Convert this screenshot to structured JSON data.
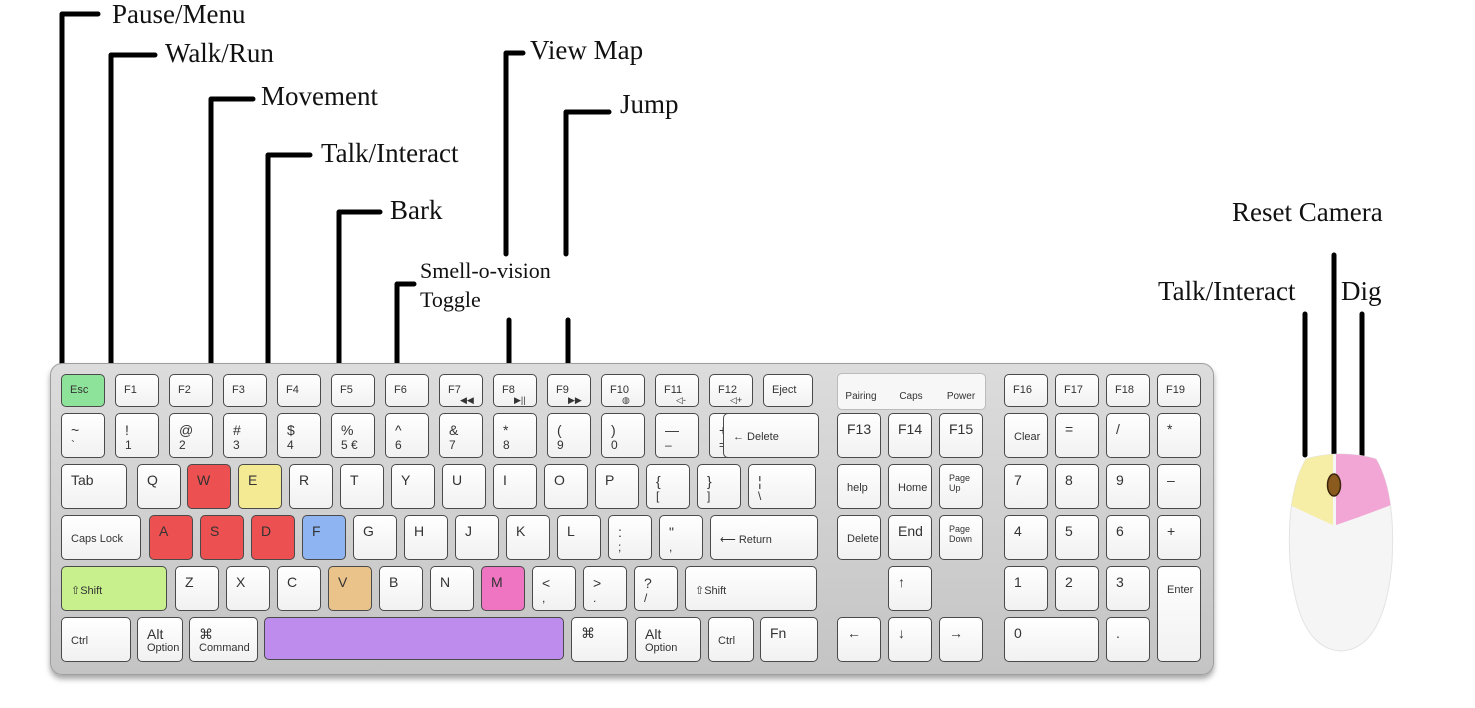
{
  "labels": {
    "pause_menu": "Pause/Menu",
    "walk_run": "Walk/Run",
    "movement": "Movement",
    "talk_interact": "Talk/Interact",
    "bark": "Bark",
    "smell_o_vision": "Smell-o-vision",
    "toggle": "Toggle",
    "view_map": "View Map",
    "jump": "Jump",
    "reset_camera": "Reset Camera",
    "mouse_talk_interact": "Talk/Interact",
    "dig": "Dig"
  },
  "highlight_colors": {
    "pause_menu": "#8ee39a",
    "walk_run": "#c8f08c",
    "movement": "#ec5050",
    "talk_interact": "#f5ea94",
    "bark": "#8fb4f2",
    "smell_o_vision": "#e9c38a",
    "view_map": "#ef74c2",
    "jump": "#be8cec",
    "mouse_left": "#f6eda6",
    "mouse_right": "#f2a6d5"
  },
  "row_function": [
    {
      "id": "esc",
      "t": "Esc",
      "hl": "pause_menu"
    },
    {
      "id": "f1",
      "t": "F1"
    },
    {
      "id": "f2",
      "t": "F2"
    },
    {
      "id": "f3",
      "t": "F3"
    },
    {
      "id": "f4",
      "t": "F4"
    },
    {
      "id": "f5",
      "t": "F5"
    },
    {
      "id": "f6",
      "t": "F6"
    },
    {
      "id": "f7",
      "t": "F7",
      "b": "◀◀"
    },
    {
      "id": "f8",
      "t": "F8",
      "b": "▶||"
    },
    {
      "id": "f9",
      "t": "F9",
      "b": "▶▶"
    },
    {
      "id": "f10",
      "t": "F10",
      "b": "◍"
    },
    {
      "id": "f11",
      "t": "F11",
      "b": "◁-"
    },
    {
      "id": "f12",
      "t": "F12",
      "b": "◁+"
    },
    {
      "id": "eject",
      "t": "Eject"
    }
  ],
  "media_keys": [
    {
      "id": "pairing",
      "t": "Pairing"
    },
    {
      "id": "caps",
      "t": "Caps"
    },
    {
      "id": "power",
      "t": "Power"
    }
  ],
  "row_f16": [
    {
      "id": "f16",
      "t": "F16"
    },
    {
      "id": "f17",
      "t": "F17"
    },
    {
      "id": "f18",
      "t": "F18"
    },
    {
      "id": "f19",
      "t": "F19"
    }
  ],
  "row_number": [
    {
      "id": "tilde",
      "t": "~",
      "b": "`"
    },
    {
      "id": "k1",
      "t": "!",
      "b": "1"
    },
    {
      "id": "k2",
      "t": "@",
      "b": "2"
    },
    {
      "id": "k3",
      "t": "#",
      "b": "3"
    },
    {
      "id": "k4",
      "t": "$",
      "b": "4"
    },
    {
      "id": "k5",
      "t": "%",
      "b": "5 €"
    },
    {
      "id": "k6",
      "t": "^",
      "b": "6"
    },
    {
      "id": "k7",
      "t": "&",
      "b": "7"
    },
    {
      "id": "k8",
      "t": "*",
      "b": "8"
    },
    {
      "id": "k9",
      "t": "(",
      "b": "9"
    },
    {
      "id": "k0",
      "t": ")",
      "b": "0"
    },
    {
      "id": "minus",
      "t": "—",
      "b": "–"
    },
    {
      "id": "equal",
      "t": "+",
      "b": "="
    },
    {
      "id": "delete",
      "t": "← Delete"
    }
  ],
  "row_number_nav": [
    {
      "id": "f13",
      "t": "F13"
    },
    {
      "id": "f14",
      "t": "F14"
    },
    {
      "id": "f15",
      "t": "F15"
    }
  ],
  "row_number_pad": [
    {
      "id": "clear",
      "t": "Clear"
    },
    {
      "id": "np_eq",
      "t": "="
    },
    {
      "id": "np_div",
      "t": "/"
    },
    {
      "id": "np_mul",
      "t": "*"
    }
  ],
  "row_qwerty": [
    {
      "id": "tab",
      "t": "Tab"
    },
    {
      "id": "q",
      "t": "Q"
    },
    {
      "id": "w",
      "t": "W",
      "hl": "movement"
    },
    {
      "id": "e",
      "t": "E",
      "hl": "talk_interact"
    },
    {
      "id": "r",
      "t": "R"
    },
    {
      "id": "t",
      "t": "T"
    },
    {
      "id": "y",
      "t": "Y"
    },
    {
      "id": "u",
      "t": "U"
    },
    {
      "id": "i",
      "t": "I"
    },
    {
      "id": "o",
      "t": "O"
    },
    {
      "id": "p",
      "t": "P"
    },
    {
      "id": "lbrace",
      "t": "{",
      "b": "["
    },
    {
      "id": "rbrace",
      "t": "}",
      "b": "]"
    },
    {
      "id": "pipe",
      "t": "¦",
      "b": "\\"
    }
  ],
  "row_qwerty_nav": [
    {
      "id": "help",
      "t": "help"
    },
    {
      "id": "home",
      "t": "Home"
    },
    {
      "id": "pgup",
      "t": "Page",
      "b": "Up"
    }
  ],
  "row_qwerty_pad": [
    {
      "id": "np7",
      "t": "7"
    },
    {
      "id": "np8",
      "t": "8"
    },
    {
      "id": "np9",
      "t": "9"
    },
    {
      "id": "np_minus",
      "t": "–"
    }
  ],
  "row_home": [
    {
      "id": "capslock",
      "t": "Caps Lock"
    },
    {
      "id": "a",
      "t": "A",
      "hl": "movement"
    },
    {
      "id": "s",
      "t": "S",
      "hl": "movement"
    },
    {
      "id": "d",
      "t": "D",
      "hl": "movement"
    },
    {
      "id": "f",
      "t": "F",
      "hl": "bark"
    },
    {
      "id": "g",
      "t": "G"
    },
    {
      "id": "h",
      "t": "H"
    },
    {
      "id": "j",
      "t": "J"
    },
    {
      "id": "k",
      "t": "K"
    },
    {
      "id": "l",
      "t": "L"
    },
    {
      "id": "semi",
      "t": ":",
      "b": ";"
    },
    {
      "id": "quote",
      "t": "\"",
      "b": ","
    },
    {
      "id": "return",
      "t": "⟵ Return"
    }
  ],
  "row_home_nav": [
    {
      "id": "fdel",
      "t": "Delete"
    },
    {
      "id": "end",
      "t": "End"
    },
    {
      "id": "pgdn",
      "t": "Page",
      "b": "Down"
    }
  ],
  "row_home_pad": [
    {
      "id": "np4",
      "t": "4"
    },
    {
      "id": "np5",
      "t": "5"
    },
    {
      "id": "np6",
      "t": "6"
    },
    {
      "id": "np_plus",
      "t": "+"
    }
  ],
  "row_shift": [
    {
      "id": "lshift",
      "t": "⇧Shift",
      "hl": "walk_run"
    },
    {
      "id": "z",
      "t": "Z"
    },
    {
      "id": "x",
      "t": "X"
    },
    {
      "id": "c",
      "t": "C"
    },
    {
      "id": "v",
      "t": "V",
      "hl": "smell_o_vision"
    },
    {
      "id": "bkey",
      "t": "B"
    },
    {
      "id": "n",
      "t": "N"
    },
    {
      "id": "m",
      "t": "M",
      "hl": "view_map"
    },
    {
      "id": "comma",
      "t": "<",
      "b": ","
    },
    {
      "id": "period",
      "t": ">",
      "b": "."
    },
    {
      "id": "slash",
      "t": "?",
      "b": "/"
    },
    {
      "id": "rshift",
      "t": "⇧Shift"
    }
  ],
  "row_shift_nav": [
    {
      "id": "up",
      "t": "↑"
    }
  ],
  "row_shift_pad": [
    {
      "id": "np1",
      "t": "1"
    },
    {
      "id": "np2",
      "t": "2"
    },
    {
      "id": "np3",
      "t": "3"
    },
    {
      "id": "enter",
      "t": "Enter"
    }
  ],
  "row_bottom": [
    {
      "id": "lctrl",
      "t": "Ctrl"
    },
    {
      "id": "lalt",
      "t": "Alt",
      "b": "Option"
    },
    {
      "id": "lcmd",
      "t": "⌘",
      "b": "Command"
    },
    {
      "id": "space",
      "t": "",
      "hl": "jump"
    },
    {
      "id": "rcmd",
      "t": "⌘"
    },
    {
      "id": "ralt",
      "t": "Alt",
      "b": "Option"
    },
    {
      "id": "rctrl",
      "t": "Ctrl"
    },
    {
      "id": "fn",
      "t": "Fn"
    }
  ],
  "row_bottom_nav": [
    {
      "id": "left",
      "t": "←"
    },
    {
      "id": "down",
      "t": "↓"
    },
    {
      "id": "right",
      "t": "→"
    }
  ],
  "row_bottom_pad": [
    {
      "id": "np0",
      "t": "0"
    },
    {
      "id": "np_dot",
      "t": "."
    }
  ]
}
